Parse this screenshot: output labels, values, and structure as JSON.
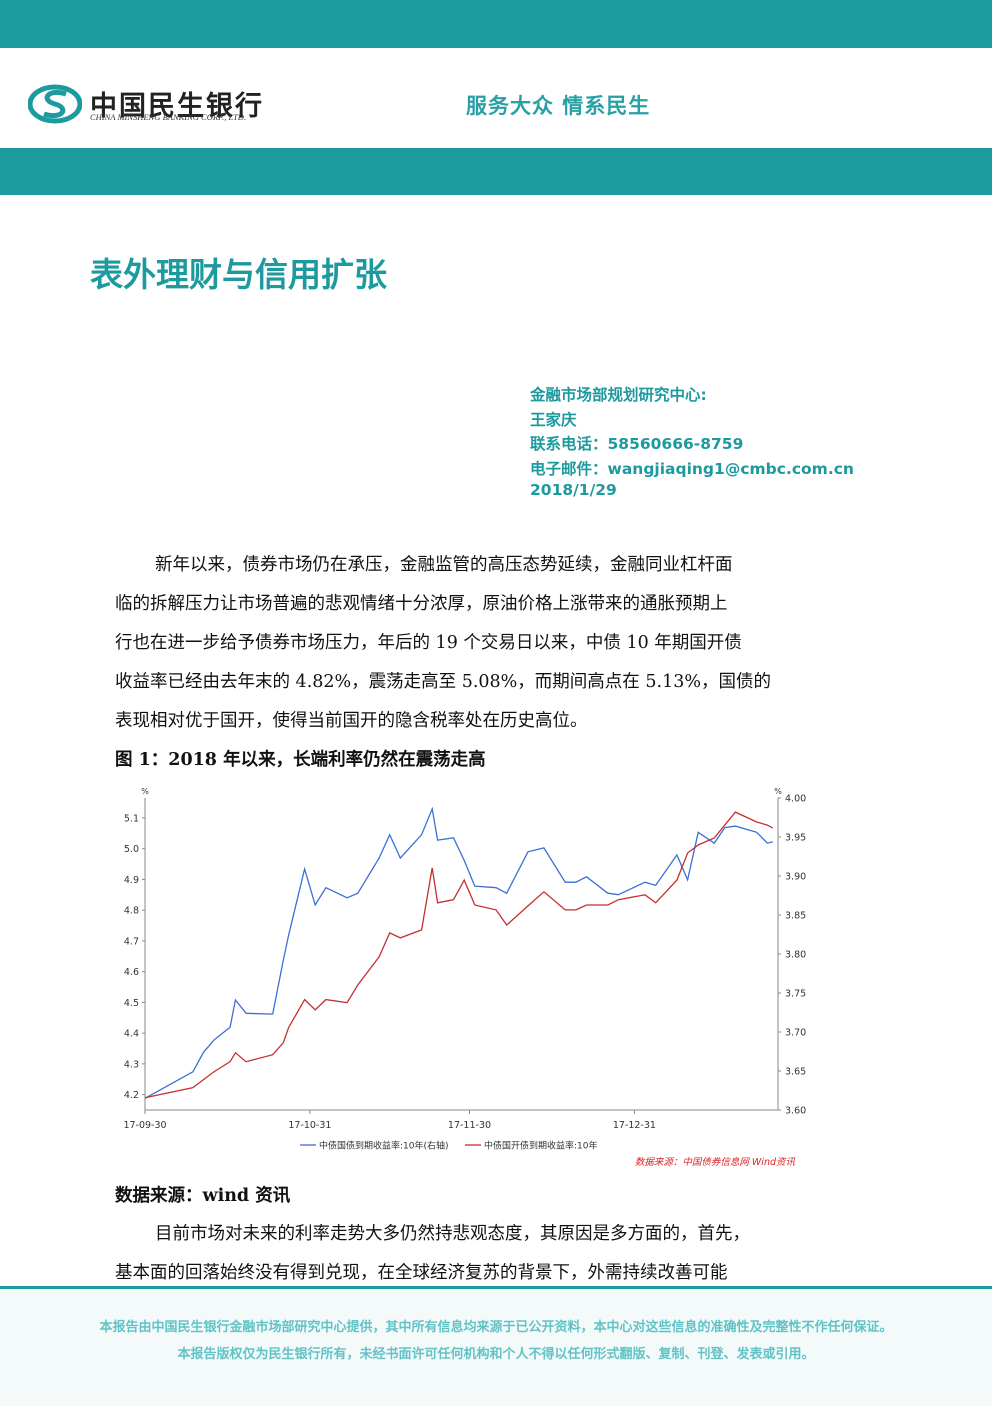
{
  "header": {
    "bank_name": "中国民生银行",
    "bank_name_en": "CHINA MINSHENG BANKING CORP., LTD.",
    "slogan": "服务大众 情系民生"
  },
  "title": "表外理财与信用扩张",
  "author": {
    "lines": [
      "金融市场部规划研究中心:",
      "王家庆",
      "联系电话：58560666-8759",
      "电子邮件：wangjiaqing1@cmbc.com.cn",
      "2018/1/29"
    ]
  },
  "paragraph_1": {
    "lines": [
      "新年以来，债券市场仍在承压，金融监管的高压态势延续，金融同业杠杆面",
      "临的拆解压力让市场普遍的悲观情绪十分浓厚，原油价格上涨带来的通胀预期上",
      "行也在进一步给予债券市场压力，年后的 19 个交易日以来，中债 10 年期国开债",
      "收益率已经由去年末的 4.82%，震荡走高至 5.08%，而期间高点在 5.13%，国债的",
      "表现相对优于国开，使得当前国开的隐含税率处在历史高位。"
    ]
  },
  "figure": {
    "caption": "图 1：2018 年以来，长端利率仍然在震荡走高",
    "source": "数据来源：wind 资讯"
  },
  "chart_data": {
    "type": "line",
    "y_unit": "%",
    "y2_unit": "%",
    "x": [
      "17-09-30",
      "17-10-09",
      "17-10-11",
      "17-10-13",
      "17-10-16",
      "17-10-17",
      "17-10-19",
      "17-10-24",
      "17-10-26",
      "17-10-27",
      "17-10-30",
      "17-11-01",
      "17-11-03",
      "17-11-07",
      "17-11-09",
      "17-11-13",
      "17-11-15",
      "17-11-17",
      "17-11-21",
      "17-11-23",
      "17-11-24",
      "17-11-27",
      "17-11-29",
      "17-12-01",
      "17-12-05",
      "17-12-07",
      "17-12-11",
      "17-12-14",
      "17-12-18",
      "17-12-20",
      "17-12-22",
      "17-12-26",
      "17-12-28",
      "18-01-02",
      "18-01-04",
      "18-01-08",
      "18-01-10",
      "18-01-12",
      "18-01-15",
      "18-01-17",
      "18-01-19",
      "18-01-23",
      "18-01-25",
      "18-01-26"
    ],
    "series": [
      {
        "name": "中债国债到期收益率:10年(右轴)",
        "color": "#3b6fd6",
        "axis": "y2",
        "values": [
          3.615,
          3.649,
          3.674,
          3.69,
          3.706,
          3.741,
          3.724,
          3.723,
          3.792,
          3.824,
          3.909,
          3.863,
          3.885,
          3.872,
          3.878,
          3.923,
          3.953,
          3.923,
          3.953,
          3.986,
          3.946,
          3.949,
          3.92,
          3.887,
          3.885,
          3.878,
          3.931,
          3.936,
          3.892,
          3.892,
          3.899,
          3.878,
          3.876,
          3.892,
          3.888,
          3.927,
          3.895,
          3.956,
          3.942,
          3.962,
          3.964,
          3.956,
          3.942,
          3.944
        ]
      },
      {
        "name": "中债国开债到期收益率:10年",
        "color": "#c62f2f",
        "values": [
          4.19,
          4.223,
          4.249,
          4.275,
          4.307,
          4.336,
          4.307,
          4.33,
          4.369,
          4.418,
          4.509,
          4.476,
          4.509,
          4.499,
          4.557,
          4.648,
          4.726,
          4.71,
          4.736,
          4.938,
          4.824,
          4.834,
          4.898,
          4.817,
          4.801,
          4.752,
          4.814,
          4.86,
          4.801,
          4.801,
          4.817,
          4.817,
          4.834,
          4.85,
          4.824,
          4.898,
          4.986,
          5.012,
          5.035,
          5.077,
          5.119,
          5.087,
          5.077,
          5.067
        ]
      }
    ],
    "xlim": [
      "17-09-30",
      "18-01-27"
    ],
    "xticks": [
      "17-09-30",
      "17-10-31",
      "17-11-30",
      "17-12-31"
    ],
    "ylim": [
      4.15,
      5.165
    ],
    "yticks": [
      4.2,
      4.3,
      4.4,
      4.5,
      4.6,
      4.7,
      4.8,
      4.9,
      {
        "value": 5,
        "label": "5.0"
      },
      5.1
    ],
    "y2lim": [
      3.6,
      4.0
    ],
    "y2ticks": [
      {
        "value": 3.6,
        "label": "3.60"
      },
      3.65,
      {
        "value": 3.7,
        "label": "3.70"
      },
      3.75,
      {
        "value": 3.8,
        "label": "3.80"
      },
      3.85,
      {
        "value": 3.9,
        "label": "3.90"
      },
      3.95,
      {
        "value": 4,
        "label": "4.00"
      }
    ],
    "source": "数据来源：中国债券信息网 Wind资讯",
    "grid": false
  },
  "paragraph_2": {
    "lines": [
      "目前市场对未来的利率走势大多仍然持悲观态度，其原因是多方面的，首先，",
      "基本面的回落始终没有得到兑现，在全球经济复苏的背景下，外需持续改善可能"
    ]
  },
  "footer": {
    "lines": [
      "本报告由中国民生银行金融市场部研究中心提供，其中所有信息均来源于已公开资料，本中心对这些信息的准确性及完整性不作任何保证。",
      "本报告版权仅为民生银行所有，未经书面许可任何机构和个人不得以任何形式翻版、复制、刊登、发表或引用。"
    ]
  }
}
